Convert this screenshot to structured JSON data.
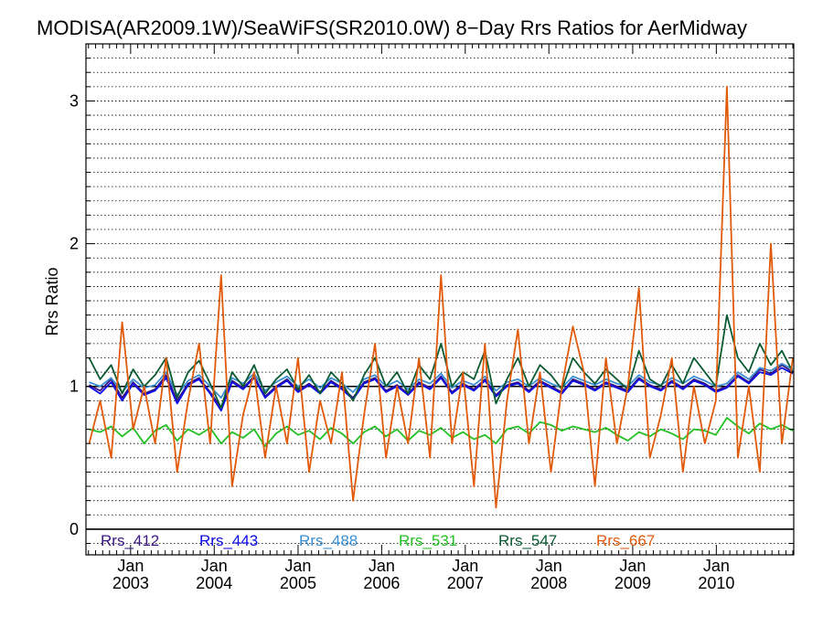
{
  "chart_data": {
    "type": "line",
    "title": "MODISA(AR2009.1W)/SeaWiFS(SR2010.0W) 8−Day Rrs Ratios for AerMidway",
    "ylabel": "Rrs Ratio",
    "xlim": [
      "2002-06-20",
      "2010-12-05"
    ],
    "ylim": [
      -0.18,
      3.4
    ],
    "yticks": [
      0,
      1,
      2,
      3
    ],
    "xticks": [
      {
        "month": "Jan",
        "year": "2003",
        "date": "2003-01-01"
      },
      {
        "month": "Jan",
        "year": "2004",
        "date": "2004-01-01"
      },
      {
        "month": "Jan",
        "year": "2005",
        "date": "2005-01-01"
      },
      {
        "month": "Jan",
        "year": "2006",
        "date": "2006-01-01"
      },
      {
        "month": "Jan",
        "year": "2007",
        "date": "2007-01-01"
      },
      {
        "month": "Jan",
        "year": "2008",
        "date": "2008-01-01"
      },
      {
        "month": "Jan",
        "year": "2009",
        "date": "2009-01-01"
      },
      {
        "month": "Jan",
        "year": "2010",
        "date": "2010-01-01"
      }
    ],
    "reference_lines": [
      0,
      1
    ],
    "grid": "dotted horizontal",
    "legend_position": "bottom-inside",
    "x_dates": [
      "2002-07-04",
      "2002-08-21",
      "2002-10-08",
      "2002-11-25",
      "2003-01-12",
      "2003-03-01",
      "2003-04-18",
      "2003-06-05",
      "2003-07-23",
      "2003-09-09",
      "2003-10-27",
      "2003-12-14",
      "2004-01-31",
      "2004-03-19",
      "2004-05-06",
      "2004-06-23",
      "2004-08-10",
      "2004-09-27",
      "2004-11-14",
      "2005-01-01",
      "2005-02-18",
      "2005-04-07",
      "2005-05-25",
      "2005-07-12",
      "2005-08-29",
      "2005-10-16",
      "2005-12-03",
      "2006-01-20",
      "2006-03-09",
      "2006-04-26",
      "2006-06-13",
      "2006-07-31",
      "2006-09-17",
      "2006-11-04",
      "2006-12-22",
      "2007-02-08",
      "2007-03-28",
      "2007-05-15",
      "2007-07-02",
      "2007-08-19",
      "2007-10-06",
      "2007-11-23",
      "2008-01-10",
      "2008-02-27",
      "2008-04-15",
      "2008-06-02",
      "2008-07-20",
      "2008-09-06",
      "2008-10-24",
      "2008-12-11",
      "2009-01-28",
      "2009-03-17",
      "2009-05-04",
      "2009-06-21",
      "2009-08-08",
      "2009-09-25",
      "2009-11-12",
      "2009-12-30",
      "2010-02-16",
      "2010-04-05",
      "2010-05-23",
      "2010-07-10",
      "2010-08-27",
      "2010-10-14",
      "2010-12-01"
    ],
    "series": [
      {
        "name": "Rrs_412",
        "color": "#3a1680",
        "values": [
          1.01,
          0.97,
          1.05,
          0.92,
          1.03,
          0.95,
          0.98,
          1.08,
          0.9,
          1.02,
          1.06,
          0.96,
          0.85,
          1.04,
          0.99,
          1.07,
          0.93,
          1.0,
          1.05,
          0.97,
          1.02,
          0.96,
          1.04,
          0.99,
          0.92,
          1.03,
          1.06,
          0.97,
          1.01,
          0.95,
          1.03,
          0.99,
          1.07,
          0.96,
          1.02,
          0.98,
          1.05,
          0.94,
          1.01,
          1.03,
          0.97,
          1.04,
          1.0,
          0.96,
          1.05,
          1.02,
          0.98,
          1.03,
          1.0,
          0.97,
          1.06,
          1.01,
          0.98,
          1.04,
          0.99,
          1.05,
          1.02,
          0.97,
          1.0,
          1.08,
          1.03,
          1.12,
          1.09,
          1.15,
          1.1
        ]
      },
      {
        "name": "Rrs_443",
        "color": "#0c0ce6",
        "values": [
          1.0,
          0.95,
          1.03,
          0.9,
          1.02,
          0.94,
          0.97,
          1.06,
          0.88,
          1.01,
          1.05,
          0.95,
          0.83,
          1.03,
          0.98,
          1.06,
          0.92,
          0.99,
          1.04,
          0.96,
          1.01,
          0.95,
          1.03,
          0.98,
          0.91,
          1.02,
          1.05,
          0.96,
          1.0,
          0.94,
          1.02,
          0.98,
          1.06,
          0.95,
          1.01,
          0.97,
          1.04,
          0.93,
          1.0,
          1.02,
          0.96,
          1.03,
          0.99,
          0.95,
          1.04,
          1.01,
          0.97,
          1.02,
          0.99,
          0.96,
          1.05,
          1.0,
          0.97,
          1.03,
          0.98,
          1.04,
          1.01,
          0.96,
          0.99,
          1.07,
          1.02,
          1.1,
          1.08,
          1.13,
          1.09
        ]
      },
      {
        "name": "Rrs_488",
        "color": "#3a8fd2",
        "values": [
          1.03,
          1.0,
          1.06,
          0.96,
          1.05,
          0.99,
          1.01,
          1.1,
          0.94,
          1.04,
          1.08,
          1.0,
          0.92,
          1.06,
          1.02,
          1.09,
          0.97,
          1.03,
          1.07,
          1.0,
          1.05,
          0.99,
          1.06,
          1.02,
          0.96,
          1.05,
          1.08,
          1.0,
          1.04,
          0.98,
          1.05,
          1.02,
          1.09,
          0.99,
          1.04,
          1.01,
          1.07,
          0.97,
          1.03,
          1.05,
          1.0,
          1.06,
          1.02,
          0.99,
          1.07,
          1.04,
          1.01,
          1.05,
          1.02,
          1.0,
          1.08,
          1.03,
          1.01,
          1.06,
          1.02,
          1.07,
          1.04,
          1.0,
          1.02,
          1.1,
          1.05,
          1.13,
          1.11,
          1.16,
          1.12
        ]
      },
      {
        "name": "Rrs_531",
        "color": "#22c022",
        "values": [
          0.7,
          0.68,
          0.72,
          0.65,
          0.71,
          0.6,
          0.69,
          0.73,
          0.62,
          0.7,
          0.66,
          0.71,
          0.6,
          0.68,
          0.64,
          0.7,
          0.58,
          0.67,
          0.72,
          0.66,
          0.69,
          0.63,
          0.71,
          0.67,
          0.6,
          0.68,
          0.72,
          0.65,
          0.7,
          0.62,
          0.69,
          0.66,
          0.71,
          0.64,
          0.68,
          0.63,
          0.66,
          0.6,
          0.7,
          0.72,
          0.67,
          0.75,
          0.73,
          0.69,
          0.72,
          0.7,
          0.68,
          0.71,
          0.66,
          0.62,
          0.68,
          0.65,
          0.7,
          0.67,
          0.63,
          0.7,
          0.69,
          0.66,
          0.78,
          0.72,
          0.67,
          0.74,
          0.7,
          0.73,
          0.69
        ]
      },
      {
        "name": "Rrs_547",
        "color": "#0a5a32",
        "values": [
          1.2,
          1.05,
          1.15,
          0.95,
          1.12,
          1.0,
          1.08,
          1.2,
          0.92,
          1.1,
          1.18,
          1.02,
          0.85,
          1.1,
          1.0,
          1.15,
          0.95,
          1.05,
          1.12,
          0.98,
          1.08,
          0.95,
          1.1,
          1.02,
          0.9,
          1.08,
          1.2,
          1.0,
          1.1,
          0.95,
          1.15,
          1.05,
          1.3,
          1.0,
          1.1,
          1.05,
          1.25,
          0.88,
          1.05,
          1.2,
          1.0,
          1.15,
          1.08,
          0.98,
          1.2,
          1.1,
          1.02,
          1.12,
          1.05,
          0.98,
          1.25,
          1.05,
          1.0,
          1.15,
          1.02,
          1.2,
          1.1,
          1.0,
          1.5,
          1.2,
          1.1,
          1.3,
          1.15,
          1.25,
          1.1
        ]
      },
      {
        "name": "Rrs_667",
        "color": "#e05a0a",
        "values": [
          0.6,
          0.9,
          0.5,
          1.45,
          0.7,
          1.0,
          0.6,
          1.2,
          0.4,
          0.9,
          1.3,
          0.6,
          1.78,
          0.3,
          0.8,
          1.1,
          0.5,
          1.0,
          0.6,
          1.2,
          0.4,
          0.9,
          0.6,
          1.1,
          0.2,
          0.8,
          1.3,
          0.5,
          1.0,
          0.6,
          1.2,
          0.5,
          1.78,
          0.6,
          1.1,
          0.3,
          1.3,
          0.15,
          0.9,
          1.4,
          0.6,
          1.1,
          0.4,
          1.0,
          1.42,
          1.1,
          0.3,
          1.2,
          0.6,
          1.0,
          1.69,
          0.5,
          0.8,
          1.2,
          0.4,
          1.0,
          0.6,
          0.9,
          3.1,
          0.5,
          1.0,
          0.4,
          2.0,
          0.6,
          1.2
        ]
      }
    ]
  }
}
